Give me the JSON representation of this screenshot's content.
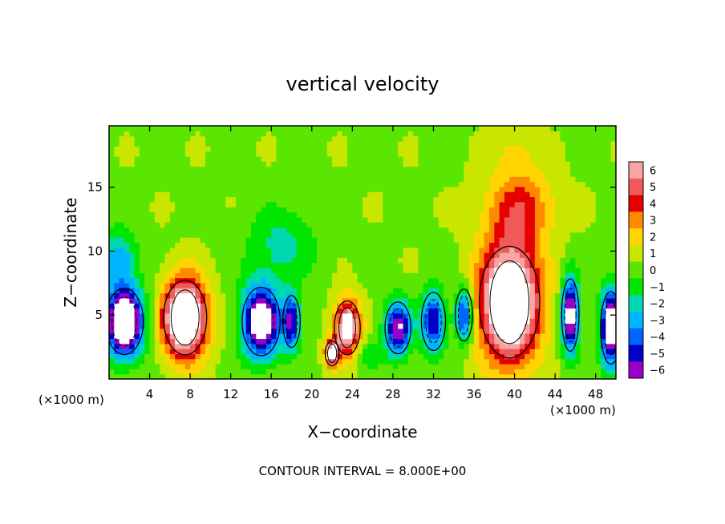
{
  "chart_data": {
    "type": "heatmap",
    "title": "vertical velocity",
    "xlabel": "X−coordinate",
    "ylabel": "Z−coordinate",
    "x_unit_left": "(×1000 m)",
    "x_unit_right": "(×1000 m)",
    "footer": "CONTOUR INTERVAL = 8.000E+00",
    "xlim": [
      0,
      50
    ],
    "ylim": [
      0,
      19.8
    ],
    "x_ticks": [
      4,
      8,
      12,
      16,
      20,
      24,
      28,
      32,
      36,
      40,
      44,
      48
    ],
    "y_ticks": [
      5,
      10,
      15
    ],
    "colorbar": {
      "labels": [
        "6",
        "5",
        "4",
        "3",
        "2",
        "1",
        "0",
        "−1",
        "−2",
        "−3",
        "−4",
        "−5",
        "−6"
      ],
      "colors": [
        "#f7a6a6",
        "#f05a5a",
        "#e60000",
        "#ff8a00",
        "#ffd400",
        "#c8e600",
        "#5ae600",
        "#00e600",
        "#00d8b0",
        "#00b4ff",
        "#0064ff",
        "#0000c8",
        "#9a00c8"
      ]
    },
    "features": [
      {
        "sign": "up",
        "x": 7.5,
        "z": 4.8,
        "rx": 2.5,
        "rz": 3.6,
        "peak": 10
      },
      {
        "sign": "up",
        "x": 23.5,
        "z": 4.0,
        "rx": 1.5,
        "rz": 2.6,
        "peak": 8
      },
      {
        "sign": "up",
        "x": 22.0,
        "z": 2.0,
        "rx": 0.8,
        "rz": 1.2,
        "peak": 7
      },
      {
        "sign": "up",
        "x": 39.5,
        "z": 6.0,
        "rx": 3.5,
        "rz": 5.4,
        "peak": 10
      },
      {
        "sign": "up",
        "x": 40.5,
        "z": 13.5,
        "rx": 4.0,
        "rz": 3.5,
        "peak": 3.5
      },
      {
        "sign": "up",
        "x": 40.0,
        "z": 18.0,
        "rx": 2.5,
        "rz": 2.0,
        "peak": 1.2
      },
      {
        "sign": "down",
        "x": 1.5,
        "z": 4.5,
        "rx": 2.2,
        "rz": 3.2,
        "peak": -10
      },
      {
        "sign": "down",
        "x": 15.0,
        "z": 4.5,
        "rx": 2.2,
        "rz": 3.3,
        "peak": -9
      },
      {
        "sign": "down",
        "x": 18.0,
        "z": 4.5,
        "rx": 1.0,
        "rz": 2.5,
        "peak": -6
      },
      {
        "sign": "down",
        "x": 28.5,
        "z": 4.0,
        "rx": 1.5,
        "rz": 2.5,
        "peak": -7
      },
      {
        "sign": "down",
        "x": 32.0,
        "z": 4.5,
        "rx": 1.4,
        "rz": 2.8,
        "peak": -6
      },
      {
        "sign": "down",
        "x": 35.0,
        "z": 5.0,
        "rx": 1.0,
        "rz": 2.5,
        "peak": -6
      },
      {
        "sign": "down",
        "x": 45.5,
        "z": 5.0,
        "rx": 1.0,
        "rz": 3.5,
        "peak": -8
      },
      {
        "sign": "down",
        "x": 49.5,
        "z": 4.0,
        "rx": 1.2,
        "rz": 3.5,
        "peak": -9
      },
      {
        "sign": "down",
        "x": 1.0,
        "z": 9.5,
        "rx": 2.0,
        "rz": 2.5,
        "peak": -3.5
      },
      {
        "sign": "down",
        "x": 17.0,
        "z": 10.5,
        "rx": 4.0,
        "rz": 3.5,
        "peak": -2.2
      },
      {
        "sign": "down",
        "x": 25.5,
        "z": 2.0,
        "rx": 2.0,
        "rz": 1.5,
        "peak": -1.5
      }
    ]
  }
}
